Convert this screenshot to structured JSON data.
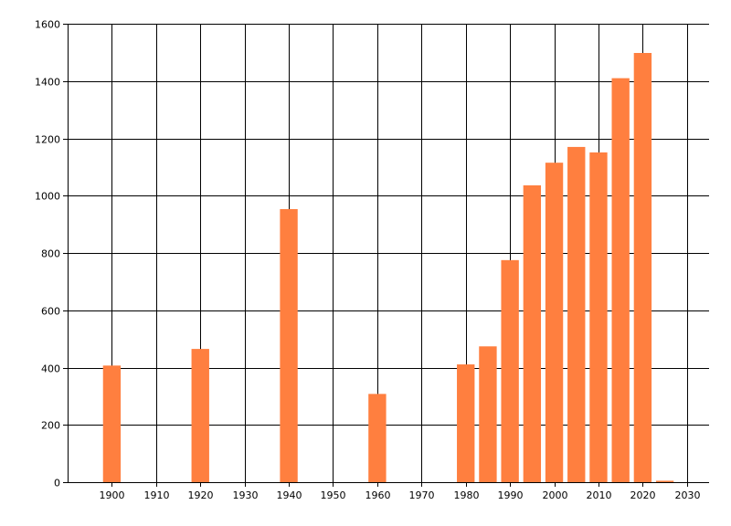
{
  "chart_data": {
    "type": "bar",
    "title": "",
    "xlabel": "",
    "ylabel": "",
    "xlim": [
      1890,
      2035
    ],
    "ylim": [
      0,
      1600
    ],
    "grid": true,
    "legend": "none",
    "bar_color": "#FF7F3F",
    "grid_color": "#000000",
    "x_ticks": [
      1900,
      1910,
      1920,
      1930,
      1940,
      1950,
      1960,
      1970,
      1980,
      1990,
      2000,
      2010,
      2020,
      2030
    ],
    "y_ticks": [
      0,
      200,
      400,
      600,
      800,
      1000,
      1200,
      1400,
      1600
    ],
    "bar_width_years": 4,
    "points": [
      {
        "x": 1900,
        "y": 407
      },
      {
        "x": 1920,
        "y": 465
      },
      {
        "x": 1940,
        "y": 953
      },
      {
        "x": 1960,
        "y": 308
      },
      {
        "x": 1980,
        "y": 411
      },
      {
        "x": 1985,
        "y": 474
      },
      {
        "x": 1990,
        "y": 775
      },
      {
        "x": 1995,
        "y": 1036
      },
      {
        "x": 2000,
        "y": 1115
      },
      {
        "x": 2005,
        "y": 1170
      },
      {
        "x": 2010,
        "y": 1151
      },
      {
        "x": 2015,
        "y": 1410
      },
      {
        "x": 2020,
        "y": 1498
      },
      {
        "x": 2025,
        "y": 5
      }
    ]
  }
}
